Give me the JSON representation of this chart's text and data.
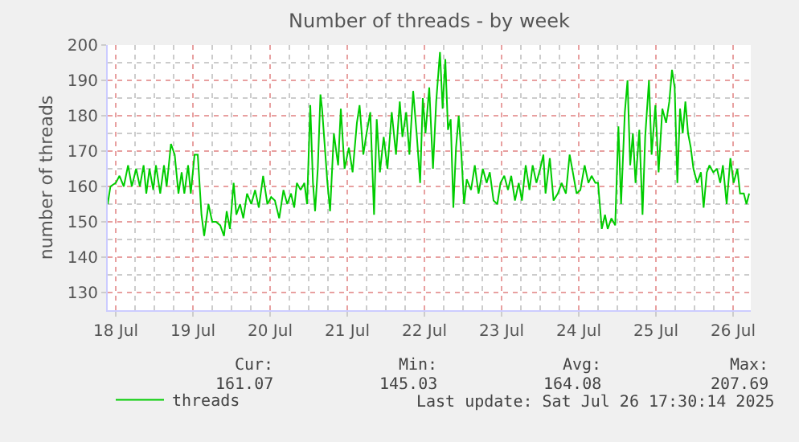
{
  "chart_data": {
    "type": "line",
    "title": "Number of threads - by week",
    "ylabel": "number of threads",
    "xlim": [
      "2025-07-18T09:30",
      "2025-07-26T17:30"
    ],
    "xticks": [
      {
        "value": "2025-07-18T12:00",
        "label": "18 Jul"
      },
      {
        "value": "2025-07-19T12:00",
        "label": "19 Jul"
      },
      {
        "value": "2025-07-20T12:00",
        "label": "20 Jul"
      },
      {
        "value": "2025-07-21T12:00",
        "label": "21 Jul"
      },
      {
        "value": "2025-07-22T12:00",
        "label": "22 Jul"
      },
      {
        "value": "2025-07-23T12:00",
        "label": "23 Jul"
      },
      {
        "value": "2025-07-24T12:00",
        "label": "24 Jul"
      },
      {
        "value": "2025-07-25T12:00",
        "label": "25 Jul"
      },
      {
        "value": "2025-07-26T12:00",
        "label": "26 Jul"
      }
    ],
    "ylim": [
      125,
      200
    ],
    "yticks": [
      130,
      140,
      150,
      160,
      170,
      180,
      190,
      200
    ],
    "grid": true,
    "legend": "bottom left",
    "marker": "none",
    "line_style": "solid",
    "x": [
      "2025-07-18T09:30",
      "2025-07-18T10:20",
      "2025-07-18T12:00",
      "2025-07-18T13:10",
      "2025-07-18T14:30",
      "2025-07-18T15:50",
      "2025-07-18T17:00",
      "2025-07-18T18:20",
      "2025-07-18T19:30",
      "2025-07-18T20:40",
      "2025-07-18T21:30",
      "2025-07-18T22:30",
      "2025-07-18T23:40",
      "2025-07-19T00:30",
      "2025-07-19T01:50",
      "2025-07-19T03:00",
      "2025-07-19T03:50",
      "2025-07-19T05:10",
      "2025-07-19T06:20",
      "2025-07-19T07:30",
      "2025-07-19T08:30",
      "2025-07-19T09:20",
      "2025-07-19T10:30",
      "2025-07-19T11:20",
      "2025-07-19T12:30",
      "2025-07-19T13:30",
      "2025-07-19T14:40",
      "2025-07-19T15:30",
      "2025-07-19T16:50",
      "2025-07-19T18:00",
      "2025-07-19T19:10",
      "2025-07-19T20:30",
      "2025-07-19T21:40",
      "2025-07-19T22:30",
      "2025-07-19T23:30",
      "2025-07-20T00:40",
      "2025-07-20T01:30",
      "2025-07-20T02:40",
      "2025-07-20T03:40",
      "2025-07-20T04:50",
      "2025-07-20T06:10",
      "2025-07-20T07:20",
      "2025-07-20T08:30",
      "2025-07-20T09:50",
      "2025-07-20T11:10",
      "2025-07-20T12:20",
      "2025-07-20T13:30",
      "2025-07-20T14:50",
      "2025-07-20T16:10",
      "2025-07-20T17:20",
      "2025-07-20T18:30",
      "2025-07-20T19:30",
      "2025-07-20T20:20",
      "2025-07-20T21:30",
      "2025-07-20T22:40",
      "2025-07-20T23:30",
      "2025-07-21T00:30",
      "2025-07-21T01:20",
      "2025-07-21T02:00",
      "2025-07-21T02:50",
      "2025-07-21T03:40",
      "2025-07-21T04:10",
      "2025-07-21T05:50",
      "2025-07-21T06:40",
      "2025-07-21T07:50",
      "2025-07-21T09:10",
      "2025-07-21T10:00",
      "2025-07-21T11:10",
      "2025-07-21T12:30",
      "2025-07-21T13:40",
      "2025-07-21T15:00",
      "2025-07-21T15:50",
      "2025-07-21T17:00",
      "2025-07-21T18:00",
      "2025-07-21T19:10",
      "2025-07-21T20:20",
      "2025-07-21T21:10",
      "2025-07-21T22:10",
      "2025-07-21T23:20",
      "2025-07-22T00:30",
      "2025-07-22T01:50",
      "2025-07-22T03:10",
      "2025-07-22T04:20",
      "2025-07-22T05:10",
      "2025-07-22T06:20",
      "2025-07-22T07:20",
      "2025-07-22T08:30",
      "2025-07-22T09:40",
      "2025-07-22T10:40",
      "2025-07-22T11:30",
      "2025-07-22T12:20",
      "2025-07-22T13:30",
      "2025-07-22T14:40",
      "2025-07-22T15:40",
      "2025-07-22T16:50",
      "2025-07-22T17:40",
      "2025-07-22T18:30",
      "2025-07-22T19:20",
      "2025-07-22T20:10",
      "2025-07-22T21:00",
      "2025-07-22T21:50",
      "2025-07-22T22:40",
      "2025-07-22T23:30",
      "2025-07-23T00:20",
      "2025-07-23T01:10",
      "2025-07-23T02:30",
      "2025-07-23T03:40",
      "2025-07-23T04:50",
      "2025-07-23T06:10",
      "2025-07-23T07:20",
      "2025-07-23T08:20",
      "2025-07-23T09:30",
      "2025-07-23T10:40",
      "2025-07-23T11:40",
      "2025-07-23T12:50",
      "2025-07-23T14:00",
      "2025-07-23T15:00",
      "2025-07-23T16:10",
      "2025-07-23T17:20",
      "2025-07-23T18:20",
      "2025-07-23T19:30",
      "2025-07-23T20:40",
      "2025-07-23T21:40",
      "2025-07-23T22:50",
      "2025-07-24T00:00",
      "2025-07-24T01:00",
      "2025-07-24T01:40",
      "2025-07-24T03:00",
      "2025-07-24T04:10",
      "2025-07-24T05:30",
      "2025-07-24T06:40",
      "2025-07-24T08:00",
      "2025-07-24T09:10",
      "2025-07-24T10:10",
      "2025-07-24T11:20",
      "2025-07-24T12:30",
      "2025-07-24T13:50",
      "2025-07-24T15:00",
      "2025-07-24T16:00",
      "2025-07-24T17:10",
      "2025-07-24T18:00",
      "2025-07-24T19:10",
      "2025-07-24T20:10",
      "2025-07-24T21:00",
      "2025-07-24T22:10",
      "2025-07-24T23:20",
      "2025-07-25T00:20",
      "2025-07-25T01:10",
      "2025-07-25T02:20",
      "2025-07-25T03:10",
      "2025-07-25T04:00",
      "2025-07-25T04:50",
      "2025-07-25T05:40",
      "2025-07-25T06:50",
      "2025-07-25T07:50",
      "2025-07-25T08:40",
      "2025-07-25T09:50",
      "2025-07-25T10:40",
      "2025-07-25T11:50",
      "2025-07-25T12:50",
      "2025-07-25T14:00",
      "2025-07-25T15:10",
      "2025-07-25T16:10",
      "2025-07-25T17:00",
      "2025-07-25T17:50",
      "2025-07-25T18:40",
      "2025-07-25T19:30",
      "2025-07-25T20:20",
      "2025-07-25T21:10",
      "2025-07-25T22:00",
      "2025-07-25T22:50",
      "2025-07-25T23:40",
      "2025-07-26T00:50",
      "2025-07-26T02:00",
      "2025-07-26T02:50",
      "2025-07-26T03:50",
      "2025-07-26T04:40",
      "2025-07-26T05:50",
      "2025-07-26T07:00",
      "2025-07-26T08:00",
      "2025-07-26T08:50",
      "2025-07-26T10:00",
      "2025-07-26T11:10",
      "2025-07-26T12:10",
      "2025-07-26T13:20",
      "2025-07-26T14:10",
      "2025-07-26T15:20",
      "2025-07-26T16:10",
      "2025-07-26T17:00"
    ],
    "series": [
      {
        "name": "threads",
        "color": "#00cc00",
        "values": [
          155,
          160,
          161,
          163,
          160,
          166,
          160,
          165,
          160,
          166,
          158,
          165,
          159,
          166,
          158,
          166,
          160,
          172,
          169,
          158,
          164,
          158,
          166,
          158,
          169,
          169,
          152,
          146,
          155,
          150,
          150,
          149,
          146,
          153,
          148,
          161,
          152,
          155,
          151,
          158,
          155,
          159,
          154,
          163,
          155,
          157,
          156,
          151,
          159,
          155,
          158,
          154,
          161,
          159,
          161,
          155,
          183,
          161,
          153,
          165,
          186,
          182,
          161,
          153,
          175,
          166,
          182,
          165,
          171,
          164,
          178,
          183,
          169,
          175,
          181,
          152,
          179,
          164,
          174,
          165,
          181,
          169,
          184,
          174,
          181,
          169,
          187,
          174,
          161,
          185,
          175,
          188,
          165,
          184,
          198,
          182,
          196,
          176,
          179,
          154,
          171,
          180,
          169,
          155,
          162,
          159,
          166,
          158,
          165,
          161,
          164,
          156,
          155,
          161,
          163,
          159,
          163,
          156,
          161,
          156,
          166,
          159,
          166,
          161,
          165,
          169,
          158,
          168,
          156,
          158,
          161,
          158,
          169,
          164,
          158,
          159,
          166,
          161,
          163,
          161,
          161,
          148,
          152,
          148,
          151,
          149,
          177,
          155,
          181,
          190,
          166,
          175,
          161,
          176,
          152,
          174,
          190,
          169,
          183,
          164,
          182,
          178,
          184,
          193,
          188,
          161,
          182,
          175,
          184,
          175,
          171,
          165,
          161,
          164,
          154,
          164,
          166,
          164,
          165,
          161,
          166,
          155,
          168,
          161,
          165,
          158,
          158,
          155,
          158
        ]
      }
    ],
    "annotations": [
      "Cur:",
      "Min:",
      "Avg:",
      "Max:",
      "161.07",
      "145.03",
      "164.08",
      "207.69",
      "Last update: Sat Jul 26 17:30:14 2025"
    ]
  }
}
